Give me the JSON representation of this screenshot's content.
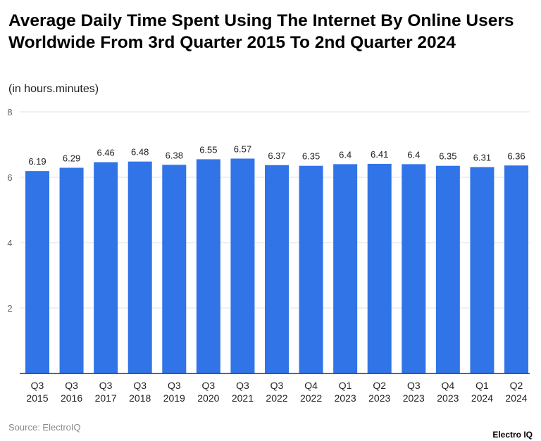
{
  "chart_data": {
    "type": "bar",
    "title": "Average Daily Time Spent Using The Internet By Online Users Worldwide From 3rd Quarter 2015 To 2nd Quarter 2024",
    "subtitle": "(in hours.minutes)",
    "categories": [
      [
        "Q3",
        "2015"
      ],
      [
        "Q3",
        "2016"
      ],
      [
        "Q3",
        "2017"
      ],
      [
        "Q3",
        "2018"
      ],
      [
        "Q3",
        "2019"
      ],
      [
        "Q3",
        "2020"
      ],
      [
        "Q3",
        "2021"
      ],
      [
        "Q3",
        "2022"
      ],
      [
        "Q4",
        "2022"
      ],
      [
        "Q1",
        "2023"
      ],
      [
        "Q2",
        "2023"
      ],
      [
        "Q3",
        "2023"
      ],
      [
        "Q4",
        "2023"
      ],
      [
        "Q1",
        "2024"
      ],
      [
        "Q2",
        "2024"
      ]
    ],
    "values": [
      6.19,
      6.29,
      6.46,
      6.48,
      6.38,
      6.55,
      6.57,
      6.37,
      6.35,
      6.4,
      6.41,
      6.4,
      6.35,
      6.31,
      6.36
    ],
    "value_labels": [
      "6.19",
      "6.29",
      "6.46",
      "6.48",
      "6.38",
      "6.55",
      "6.57",
      "6.37",
      "6.35",
      "6.4",
      "6.41",
      "6.4",
      "6.35",
      "6.31",
      "6.36"
    ],
    "ylim": [
      0,
      8
    ],
    "yticks": [
      2,
      4,
      6,
      8
    ],
    "xlabel": "",
    "ylabel": "",
    "grid": true,
    "bar_color": "#3174e8"
  },
  "source": "Source: ElectroIQ",
  "logo": "Electro IQ"
}
